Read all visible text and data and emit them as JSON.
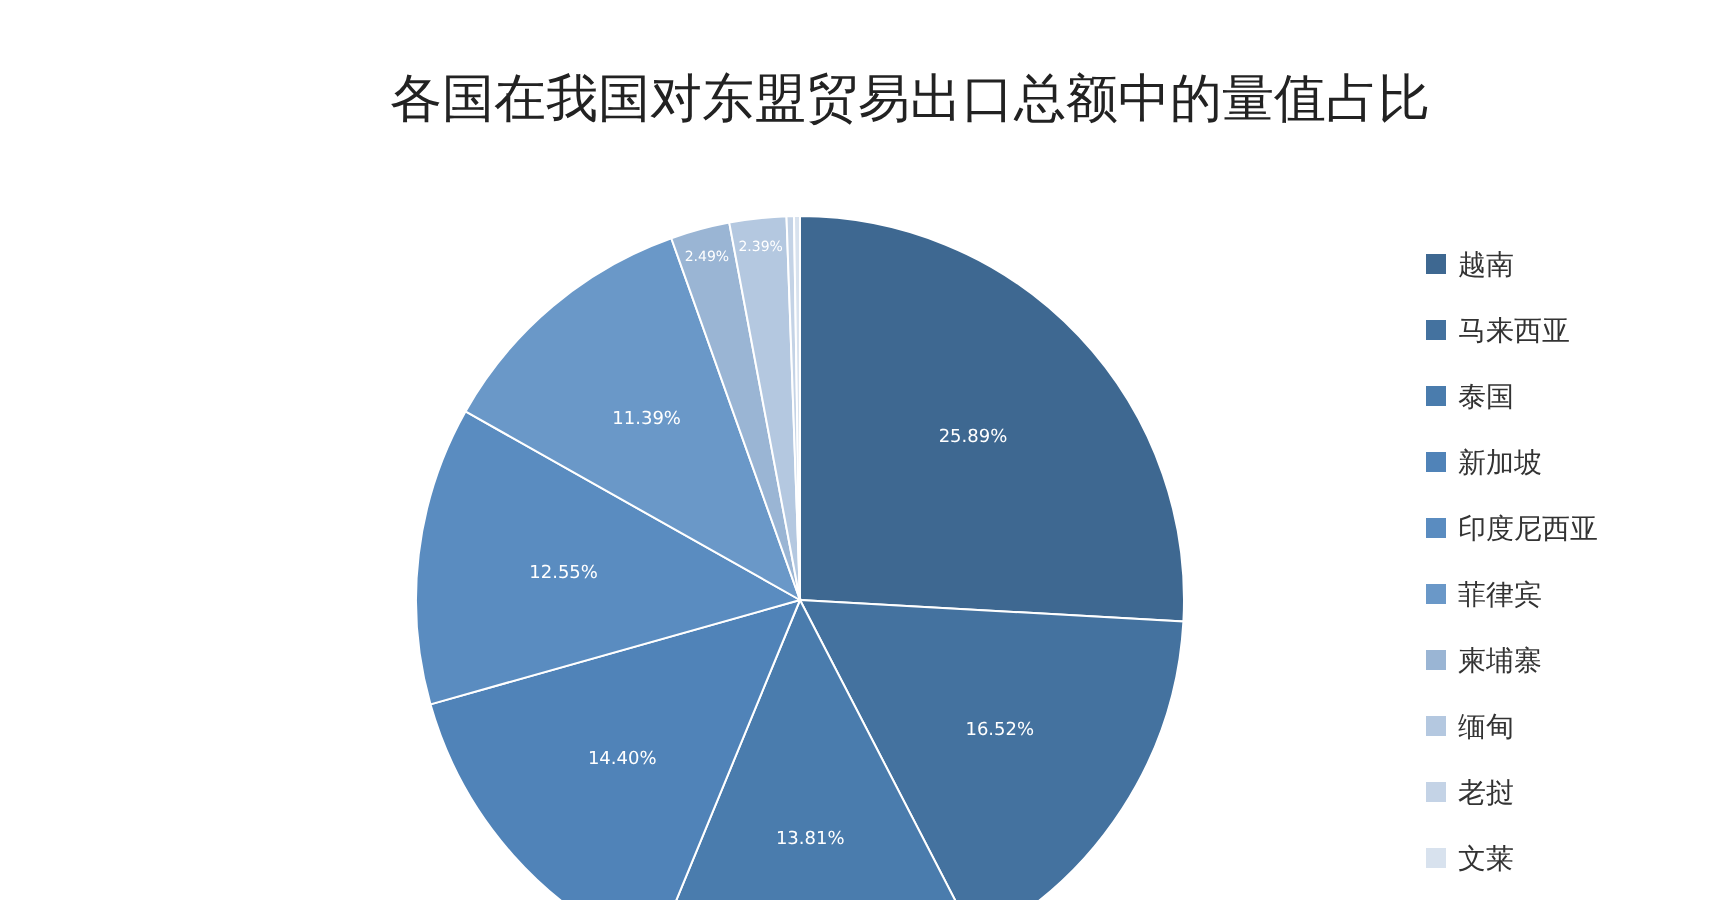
{
  "chart_data": {
    "type": "pie",
    "title": "各国在我国对东盟贸易出口总额中的量值占比",
    "categories": [
      "越南",
      "马来西亚",
      "泰国",
      "新加坡",
      "印度尼西亚",
      "菲律宾",
      "柬埔寨",
      "缅甸",
      "老挝",
      "文莱"
    ],
    "values": [
      25.89,
      16.52,
      13.81,
      14.4,
      12.55,
      11.39,
      2.49,
      2.39,
      0.31,
      0.25
    ],
    "value_labels": [
      "25.89%",
      "16.52%",
      "13.81%",
      "14.40%",
      "12.55%",
      "11.39%",
      "2.49%",
      "2.39%",
      null,
      null
    ],
    "colors": [
      "#3e6891",
      "#44729f",
      "#4a7cad",
      "#5083b8",
      "#5a8cc0",
      "#6a98c8",
      "#9ab5d4",
      "#b4c8e0",
      "#c4d3e6",
      "#d8e2ee"
    ],
    "legend": "right"
  }
}
